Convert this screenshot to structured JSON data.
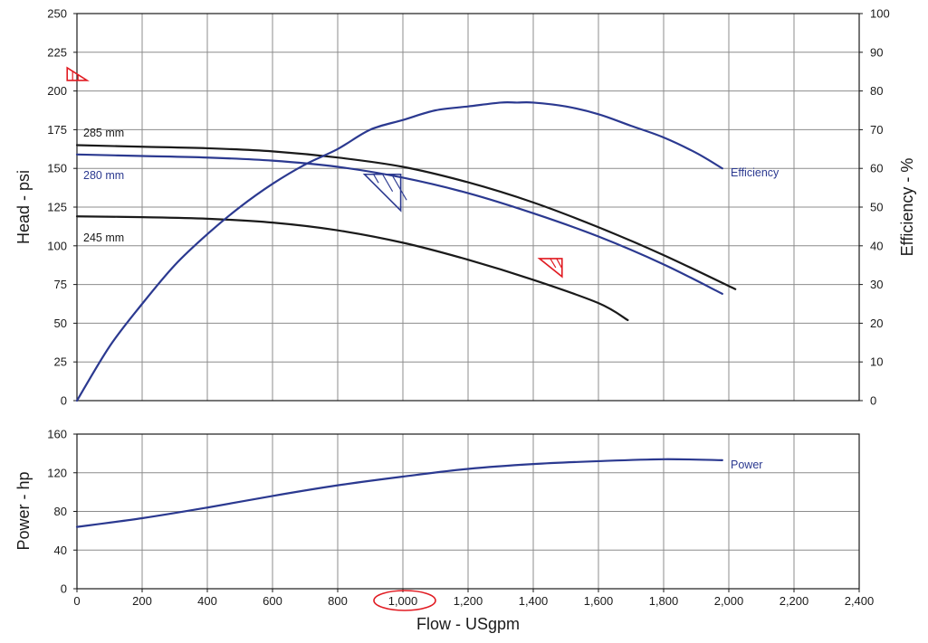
{
  "chart_data": [
    {
      "type": "line",
      "ylabel": "Head - psi",
      "y2label": "Efficiency - %",
      "xlim": [
        0,
        2400
      ],
      "ylim": [
        0,
        250
      ],
      "y2lim": [
        0,
        100
      ],
      "y_ticks": [
        "0",
        "25",
        "50",
        "75",
        "100",
        "125",
        "150",
        "175",
        "200",
        "225",
        "250"
      ],
      "y2_ticks": [
        "0",
        "10",
        "20",
        "30",
        "40",
        "50",
        "60",
        "70",
        "80",
        "90",
        "100"
      ],
      "grid": true,
      "series": [
        {
          "name": "285 mm",
          "axis": "left",
          "color": "#1a1a1a",
          "x": [
            0,
            200,
            400,
            600,
            800,
            1000,
            1200,
            1400,
            1600,
            1800,
            2020
          ],
          "y": [
            165,
            164,
            163,
            161,
            157,
            151,
            141,
            128,
            112,
            94,
            72
          ]
        },
        {
          "name": "280 mm",
          "axis": "left",
          "color": "#2b3990",
          "x": [
            0,
            200,
            400,
            600,
            800,
            1000,
            1200,
            1400,
            1600,
            1800,
            1980
          ],
          "y": [
            159,
            158,
            157,
            155,
            151,
            144,
            134,
            121,
            106,
            88,
            69
          ]
        },
        {
          "name": "245 mm",
          "axis": "left",
          "color": "#1a1a1a",
          "x": [
            0,
            200,
            400,
            600,
            800,
            1000,
            1200,
            1400,
            1600,
            1690
          ],
          "y": [
            119,
            118.5,
            117.5,
            115,
            110,
            102,
            91,
            78,
            63,
            52
          ]
        },
        {
          "name": "Efficiency",
          "axis": "right",
          "color": "#2b3990",
          "x": [
            0,
            100,
            200,
            300,
            400,
            500,
            600,
            700,
            800,
            900,
            1000,
            1100,
            1200,
            1300,
            1350,
            1400,
            1500,
            1600,
            1700,
            1800,
            1900,
            1980
          ],
          "y": [
            0,
            14,
            25,
            35,
            43,
            50,
            56,
            61,
            65,
            70,
            72.5,
            75,
            76,
            77,
            77,
            77,
            76,
            74,
            71,
            68,
            64,
            60
          ]
        }
      ],
      "annotations": {
        "red_triangle_1": {
          "x": 20,
          "y": 208
        },
        "red_triangle_2": {
          "x": 1480,
          "y": 90
        },
        "blue_triangle": {
          "x": 985,
          "y": 145
        }
      }
    },
    {
      "type": "line",
      "xlabel": "Flow - USgpm",
      "ylabel": "Power - hp",
      "xlim": [
        0,
        2400
      ],
      "ylim": [
        0,
        160
      ],
      "x_ticks": [
        "0",
        "200",
        "400",
        "600",
        "800",
        "1,000",
        "1,200",
        "1,400",
        "1,600",
        "1,800",
        "2,000",
        "2,200",
        "2,400"
      ],
      "y_ticks": [
        "0",
        "40",
        "80",
        "120",
        "160"
      ],
      "highlighted_tick": "1,000",
      "grid": true,
      "series": [
        {
          "name": "Power",
          "color": "#2b3990",
          "x": [
            0,
            200,
            400,
            600,
            800,
            1000,
            1200,
            1400,
            1600,
            1800,
            1980
          ],
          "y": [
            64,
            73,
            84,
            96,
            107,
            116,
            124,
            129,
            132,
            134,
            133
          ]
        }
      ]
    }
  ],
  "colors": {
    "blue": "#2b3990",
    "black": "#1a1a1a",
    "red": "#e11b22",
    "grid": "#8c8c8c"
  }
}
